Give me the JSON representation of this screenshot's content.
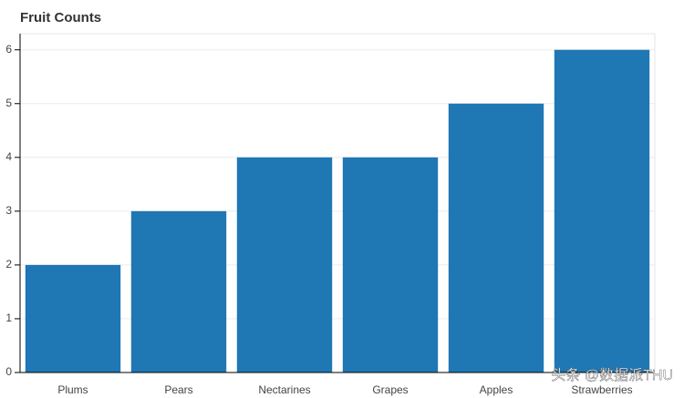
{
  "chart_data": {
    "type": "bar",
    "title": "Fruit Counts",
    "categories": [
      "Plums",
      "Pears",
      "Nectarines",
      "Grapes",
      "Apples",
      "Strawberries"
    ],
    "values": [
      2,
      3,
      4,
      4,
      5,
      6
    ],
    "color": "#1f77b4",
    "ylim": [
      0,
      6.3
    ],
    "yticks": [
      0,
      1,
      2,
      3,
      4,
      5,
      6
    ],
    "grid": true
  },
  "watermark": "头条 @数据派THU"
}
